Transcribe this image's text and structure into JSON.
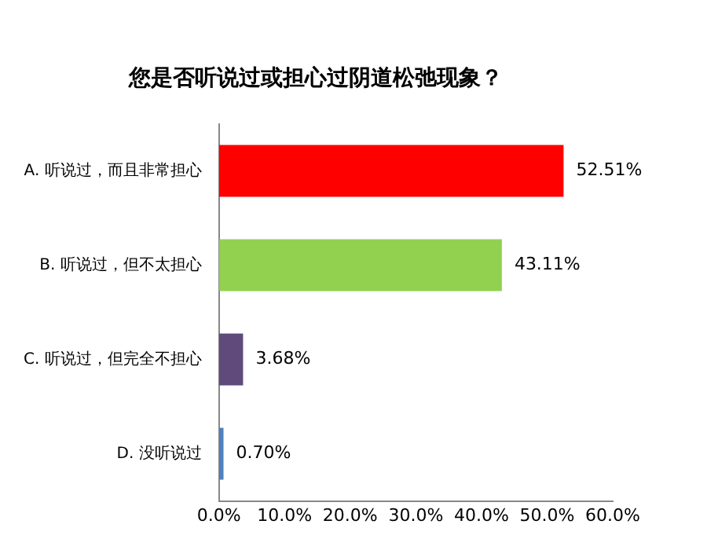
{
  "chart_data": {
    "type": "bar",
    "orientation": "horizontal",
    "title": "您是否听说过或担心过阴道松弛现象？",
    "categories": [
      "A. 听说过，而且非常担心",
      "B. 听说过，但不太担心",
      "C. 听说过，但完全不担心",
      "D. 没听说过"
    ],
    "values": [
      52.51,
      43.11,
      3.68,
      0.7
    ],
    "colors": [
      "#ff0000",
      "#92d050",
      "#604a7b",
      "#4f81bd"
    ],
    "value_labels": [
      "52.51%",
      "43.11%",
      "3.68%",
      "0.70%"
    ],
    "xlim": [
      0,
      60
    ],
    "xticks": [
      {
        "value": 0,
        "label": "0.0%"
      },
      {
        "value": 10,
        "label": "10.0%"
      },
      {
        "value": 20,
        "label": "20.0%"
      },
      {
        "value": 30,
        "label": "30.0%"
      },
      {
        "value": 40,
        "label": "40.0%"
      },
      {
        "value": 50,
        "label": "50.0%"
      },
      {
        "value": 60,
        "label": "60.0%"
      }
    ],
    "grid": false,
    "legend": false
  }
}
